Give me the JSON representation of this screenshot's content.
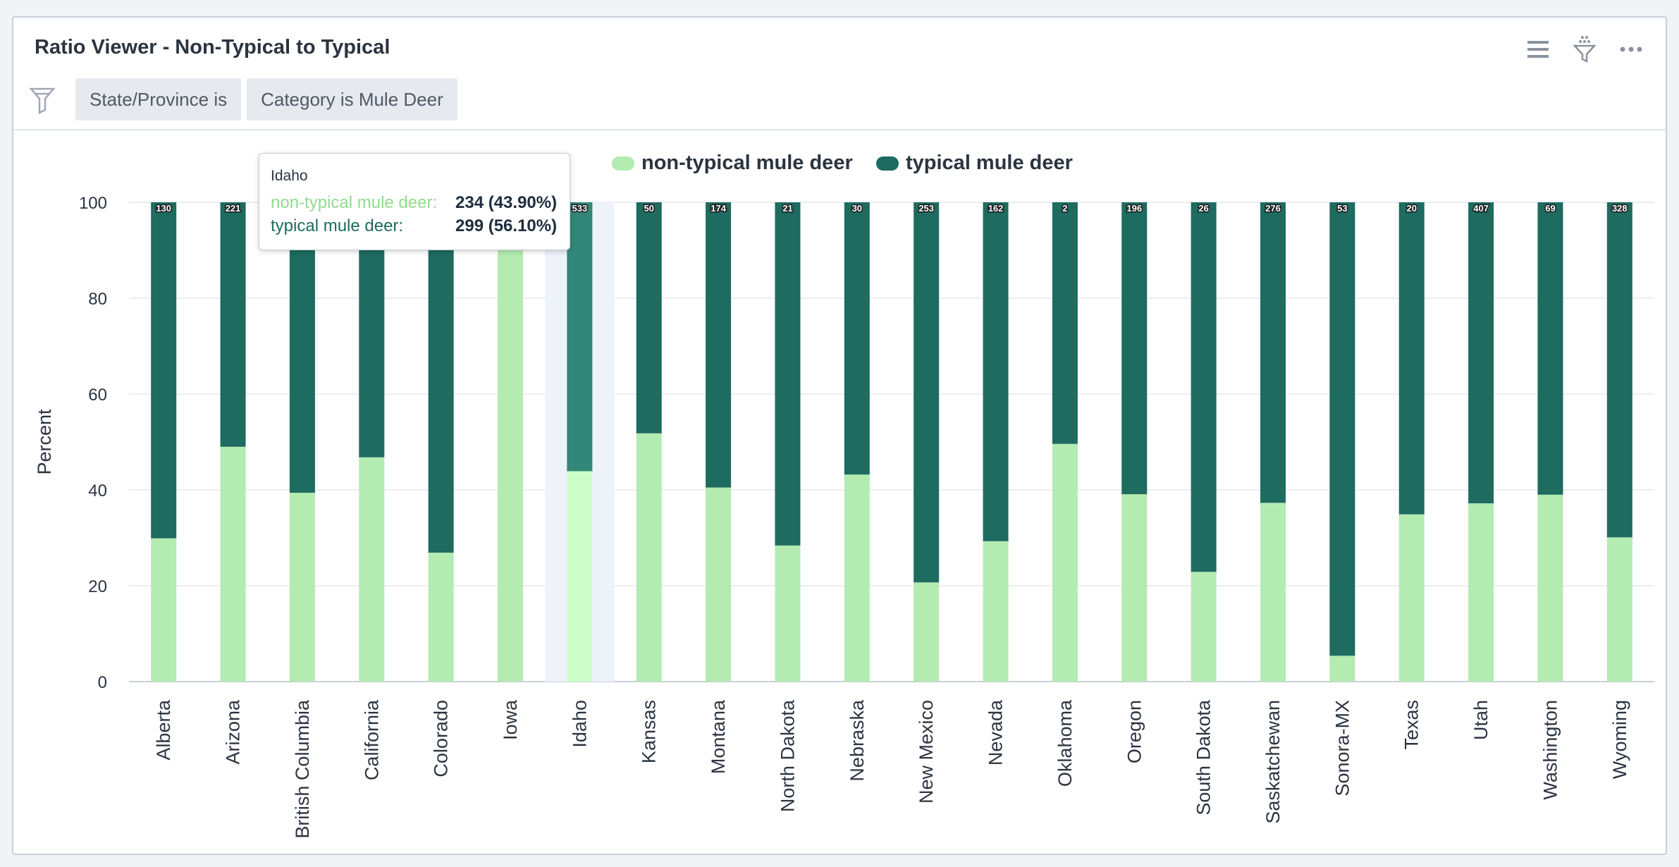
{
  "title": "Ratio Viewer - Non-Typical to Typical",
  "header_icons": [
    "list-icon",
    "filter-dots-icon",
    "more-options-icon"
  ],
  "filters": [
    "State/Province is",
    "Category is Mule Deer"
  ],
  "colors": {
    "non_typical": "#b3ebb1",
    "typical": "#1e6b60",
    "highlight_non_typical": "#ccfdca",
    "highlight_typical": "#338779",
    "highlight_band": "#eef2f9"
  },
  "chart_data": {
    "type": "bar",
    "stacked": "percent",
    "ylabel": "Percent",
    "ylim": [
      0,
      100
    ],
    "yticks": [
      0,
      20,
      40,
      60,
      80,
      100
    ],
    "legend_position": "top",
    "categories": [
      "Alberta",
      "Arizona",
      "British Columbia",
      "California",
      "Colorado",
      "Iowa",
      "Idaho",
      "Kansas",
      "Montana",
      "North Dakota",
      "Nebraska",
      "New Mexico",
      "Nevada",
      "Oklahoma",
      "Oregon",
      "South Dakota",
      "Saskatchewan",
      "Sonora-MX",
      "Texas",
      "Utah",
      "Washington",
      "Wyoming"
    ],
    "series": [
      {
        "name": "non-typical mule deer",
        "values": [
          29.9,
          49.0,
          39.4,
          46.8,
          26.9,
          100,
          43.9,
          51.8,
          40.5,
          28.4,
          43.2,
          20.7,
          29.3,
          49.6,
          39.1,
          22.9,
          37.3,
          5.4,
          34.9,
          37.2,
          39.0,
          30.1
        ]
      },
      {
        "name": "typical mule deer",
        "values": [
          70.1,
          51.0,
          60.6,
          53.2,
          73.1,
          0,
          56.1,
          48.2,
          59.5,
          71.6,
          56.8,
          79.3,
          70.7,
          50.4,
          60.9,
          77.1,
          62.7,
          94.6,
          65.1,
          62.8,
          61.0,
          69.9
        ]
      }
    ],
    "total_labels": [
      "130",
      "221",
      "",
      "",
      "",
      "",
      "533",
      "50",
      "174",
      "21",
      "30",
      "253",
      "162",
      "2",
      "196",
      "26",
      "276",
      "53",
      "20",
      "407",
      "69",
      "328"
    ],
    "highlighted_category": "Idaho"
  },
  "tooltip": {
    "title": "Idaho",
    "rows": [
      {
        "label": "non-typical mule deer:",
        "value": "234 (43.90%)"
      },
      {
        "label": "typical mule deer:",
        "value": "299 (56.10%)"
      }
    ]
  }
}
